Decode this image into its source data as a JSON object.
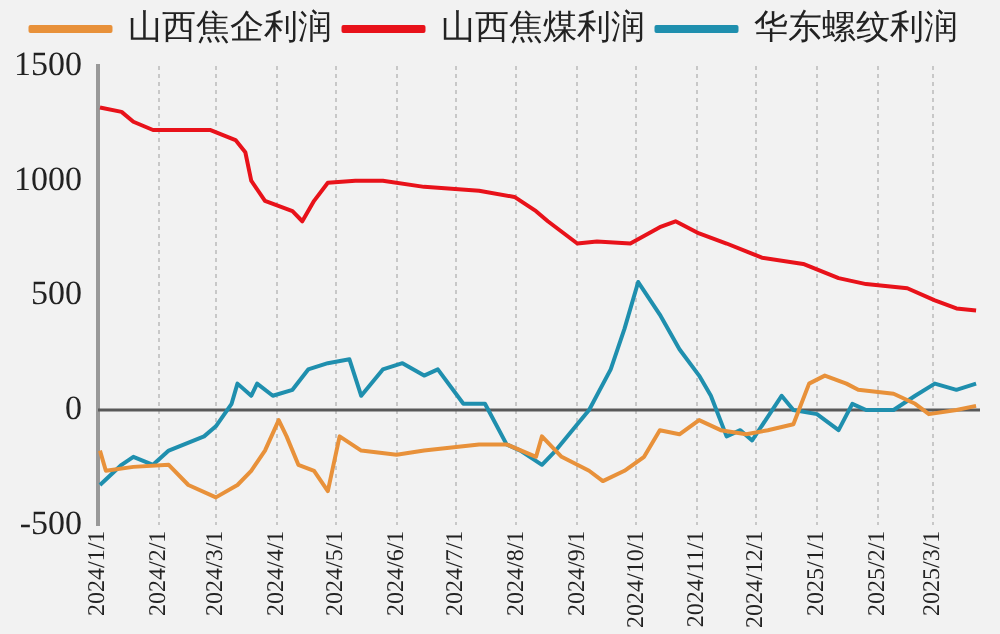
{
  "chart_data": {
    "type": "line",
    "legend": "top",
    "grid": "x",
    "ylim": [
      -500,
      1500
    ],
    "yticks": [
      -500,
      0,
      500,
      1000,
      1500
    ],
    "xlim": [
      "2024-01-01",
      "2025-03-25"
    ],
    "xticks": [
      {
        "value": "2024-01-01",
        "label": "2024/1/1"
      },
      {
        "value": "2024-02-01",
        "label": "2024/2/1"
      },
      {
        "value": "2024-03-01",
        "label": "2024/3/1"
      },
      {
        "value": "2024-04-01",
        "label": "2024/4/1"
      },
      {
        "value": "2024-05-01",
        "label": "2024/5/1"
      },
      {
        "value": "2024-06-01",
        "label": "2024/6/1"
      },
      {
        "value": "2024-07-01",
        "label": "2024/7/1"
      },
      {
        "value": "2024-08-01",
        "label": "2024/8/1"
      },
      {
        "value": "2024-09-01",
        "label": "2024/9/1"
      },
      {
        "value": "2024-10-01",
        "label": "2024/10/1"
      },
      {
        "value": "2024-11-01",
        "label": "2024/11/1"
      },
      {
        "value": "2024-12-01",
        "label": "2024/12/1"
      },
      {
        "value": "2025-01-01",
        "label": "2025/1/1"
      },
      {
        "value": "2025-02-01",
        "label": "2025/2/1"
      },
      {
        "value": "2025-03-01",
        "label": "2025/3/1"
      }
    ],
    "ref_lines": [
      {
        "axis": "y",
        "value": 0,
        "color": "#595959"
      }
    ],
    "series": [
      {
        "name": "山西焦企利润",
        "color": "#e8913a",
        "x": [
          "2024-01-02",
          "2024-01-05",
          "2024-01-19",
          "2024-02-06",
          "2024-02-16",
          "2024-03-01",
          "2024-03-12",
          "2024-03-19",
          "2024-03-26",
          "2024-04-02",
          "2024-04-06",
          "2024-04-12",
          "2024-04-20",
          "2024-04-27",
          "2024-05-03",
          "2024-05-14",
          "2024-06-01",
          "2024-06-15",
          "2024-07-13",
          "2024-07-27",
          "2024-08-11",
          "2024-08-14",
          "2024-08-24",
          "2024-09-07",
          "2024-09-14",
          "2024-09-25",
          "2024-10-05",
          "2024-10-13",
          "2024-10-23",
          "2024-11-02",
          "2024-11-13",
          "2024-11-26",
          "2024-12-07",
          "2024-12-20",
          "2024-12-28",
          "2025-01-05",
          "2025-01-16",
          "2025-01-22",
          "2025-02-09",
          "2025-02-20",
          "2025-02-27",
          "2025-03-13",
          "2025-03-23"
        ],
        "values": [
          -177,
          -265,
          -248,
          -239,
          -327,
          -381,
          -327,
          -265,
          -177,
          -44,
          -115,
          -239,
          -265,
          -354,
          -115,
          -177,
          -195,
          -177,
          -150,
          -150,
          -204,
          -115,
          -204,
          -265,
          -310,
          -265,
          -204,
          -88,
          -106,
          -44,
          -88,
          -106,
          -88,
          -62,
          115,
          150,
          115,
          88,
          71,
          27,
          -18,
          0,
          18
        ]
      },
      {
        "name": "山西焦煤利润",
        "color": "#e8121a",
        "x": [
          "2024-01-02",
          "2024-01-13",
          "2024-01-19",
          "2024-01-29",
          "2024-02-27",
          "2024-03-11",
          "2024-03-16",
          "2024-03-19",
          "2024-03-26",
          "2024-04-09",
          "2024-04-14",
          "2024-04-20",
          "2024-04-27",
          "2024-05-11",
          "2024-05-25",
          "2024-06-15",
          "2024-07-13",
          "2024-07-31",
          "2024-08-11",
          "2024-08-17",
          "2024-09-01",
          "2024-09-11",
          "2024-09-28",
          "2024-10-13",
          "2024-10-21",
          "2024-11-02",
          "2024-11-16",
          "2024-12-04",
          "2024-12-25",
          "2025-01-12",
          "2025-01-26",
          "2025-02-16",
          "2025-03-02",
          "2025-03-13",
          "2025-03-23"
        ],
        "values": [
          1319,
          1300,
          1257,
          1221,
          1221,
          1177,
          1124,
          1000,
          912,
          867,
          823,
          912,
          991,
          1000,
          1000,
          973,
          956,
          929,
          867,
          823,
          726,
          735,
          726,
          797,
          823,
          770,
          726,
          664,
          637,
          575,
          549,
          531,
          478,
          443,
          434
        ]
      },
      {
        "name": "华东螺纹利润",
        "color": "#1f8fae",
        "x": [
          "2024-01-02",
          "2024-01-13",
          "2024-01-19",
          "2024-01-29",
          "2024-02-06",
          "2024-02-24",
          "2024-03-01",
          "2024-03-09",
          "2024-03-12",
          "2024-03-19",
          "2024-03-22",
          "2024-03-30",
          "2024-04-09",
          "2024-04-17",
          "2024-04-27",
          "2024-05-08",
          "2024-05-14",
          "2024-05-25",
          "2024-06-04",
          "2024-06-15",
          "2024-06-22",
          "2024-07-05",
          "2024-07-16",
          "2024-07-27",
          "2024-08-03",
          "2024-08-14",
          "2024-08-21",
          "2024-09-01",
          "2024-09-07",
          "2024-09-18",
          "2024-09-25",
          "2024-10-02",
          "2024-10-13",
          "2024-10-23",
          "2024-11-02",
          "2024-11-08",
          "2024-11-16",
          "2024-11-23",
          "2024-11-29",
          "2024-12-14",
          "2024-12-20",
          "2025-01-01",
          "2025-01-12",
          "2025-01-19",
          "2025-01-26",
          "2025-02-09",
          "2025-02-20",
          "2025-03-02",
          "2025-03-13",
          "2025-03-23"
        ],
        "values": [
          -327,
          -239,
          -204,
          -239,
          -177,
          -115,
          -71,
          27,
          115,
          62,
          115,
          62,
          88,
          177,
          204,
          221,
          62,
          177,
          204,
          150,
          177,
          27,
          27,
          -150,
          -177,
          -239,
          -177,
          -62,
          0,
          177,
          354,
          558,
          416,
          265,
          150,
          62,
          -115,
          -88,
          -133,
          62,
          0,
          -18,
          -88,
          27,
          0,
          0,
          62,
          115,
          88,
          115
        ]
      }
    ]
  }
}
